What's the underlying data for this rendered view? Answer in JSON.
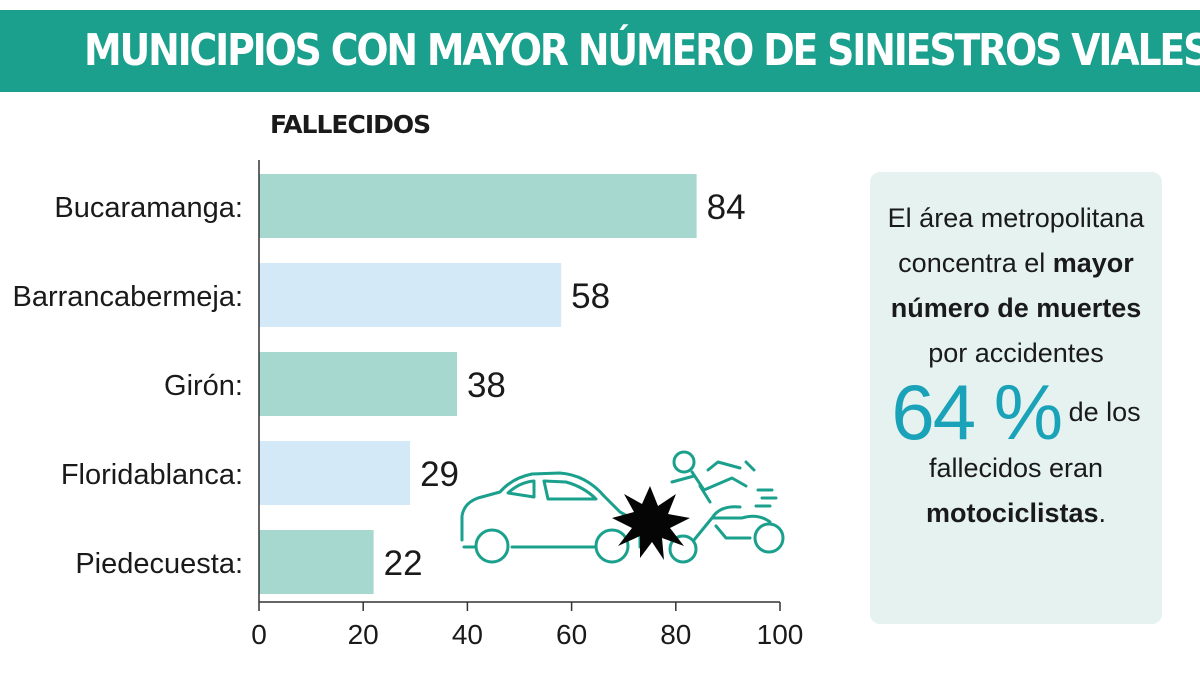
{
  "title": "MUNICIPIOS CON MAYOR NÚMERO DE SINIESTROS VIALES",
  "colors": {
    "banner": "#1aa08c",
    "bar_dark": "#a7d8d0",
    "bar_light": "#d3e9f8",
    "accent_percent": "#1aa3b8",
    "info_bg": "#e5f2f0",
    "illustration_stroke": "#1aa08c"
  },
  "chart_data": {
    "type": "bar",
    "orientation": "horizontal",
    "ylabel": "FALLECIDOS",
    "categories": [
      "Bucaramanga:",
      "Barrancabermeja:",
      "Girón:",
      "Floridablanca:",
      "Piedecuesta:"
    ],
    "values": [
      84,
      58,
      38,
      29,
      22
    ],
    "xlim": [
      0,
      100
    ],
    "xticks": [
      0,
      20,
      40,
      60,
      80,
      100
    ],
    "grid": false,
    "legend": "none"
  },
  "info": {
    "line1": "El área metropolitana",
    "line2a": "concentra el ",
    "line2b": "mayor",
    "line3": "número de muertes",
    "line4": "por accidentes",
    "percent": "64 %",
    "after_percent": "de los",
    "line6": "fallecidos eran",
    "line7": "motociclistas",
    "line7_end": "."
  },
  "illustration": {
    "icon": "car-motorcycle-crash-icon"
  }
}
